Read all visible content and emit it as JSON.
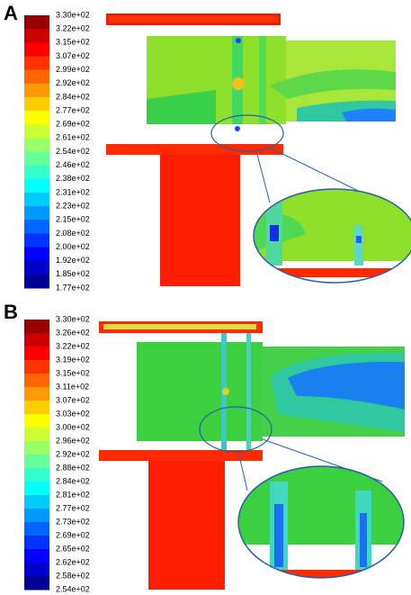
{
  "panels": [
    {
      "label": "A",
      "colorbar": [
        "3.30e+02",
        "3.22e+02",
        "3.15e+02",
        "3.07e+02",
        "2.99e+02",
        "2.92e+02",
        "2.84e+02",
        "2.77e+02",
        "2.69e+02",
        "2.61e+02",
        "2.54e+02",
        "2.46e+02",
        "2.38e+02",
        "2.31e+02",
        "2.23e+02",
        "2.15e+02",
        "2.08e+02",
        "2.00e+02",
        "1.92e+02",
        "1.85e+02",
        "1.77e+02"
      ]
    },
    {
      "label": "B",
      "colorbar": [
        "3.30e+02",
        "3.26e+02",
        "3.22e+02",
        "3.19e+02",
        "3.15e+02",
        "3.11e+02",
        "3.07e+02",
        "3.03e+02",
        "3.00e+02",
        "2.96e+02",
        "2.92e+02",
        "2.88e+02",
        "2.84e+02",
        "2.81e+02",
        "2.77e+02",
        "2.73e+02",
        "2.69e+02",
        "2.65e+02",
        "2.62e+02",
        "2.58e+02",
        "2.54e+02"
      ]
    }
  ]
}
